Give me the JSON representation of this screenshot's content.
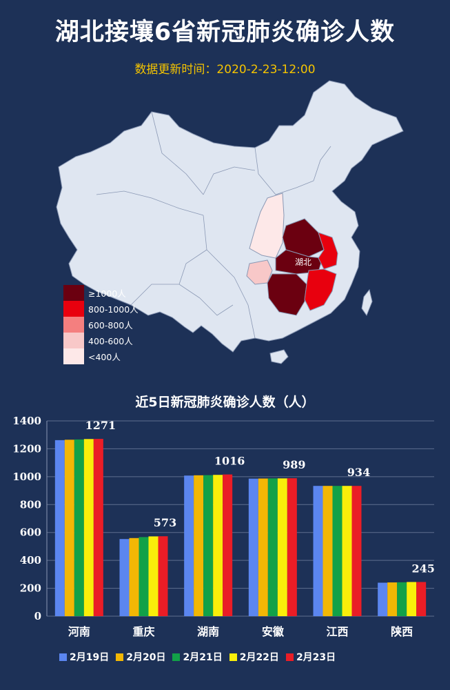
{
  "header": {
    "title": "湖北接壤6省新冠肺炎确诊人数",
    "update_time": "数据更新时间：2020-2-23-12:00"
  },
  "map": {
    "hubei_label": "湖北",
    "legend": [
      {
        "label": "≥1000人",
        "color": "#6b0010"
      },
      {
        "label": "800-1000人",
        "color": "#e8000e"
      },
      {
        "label": "600-800人",
        "color": "#f47f7f"
      },
      {
        "label": "400-600人",
        "color": "#f8c8c8"
      },
      {
        "label": "<400人",
        "color": "#fde8e8"
      }
    ]
  },
  "colors": {
    "background": "#1d3157",
    "map_land": "#dfe6f1",
    "title": "#ffffff",
    "subtitle": "#f5c400",
    "axis_text": "#ffffff"
  },
  "chart_title": "近5日新冠肺炎确诊人数（人）",
  "chart_data": {
    "type": "bar",
    "categories": [
      "河南",
      "重庆",
      "湖南",
      "安徽",
      "江西",
      "陕西"
    ],
    "series": [
      {
        "name": "2月19日",
        "color": "#5b86f0",
        "values": [
          1262,
          553,
          1008,
          986,
          934,
          240
        ]
      },
      {
        "name": "2月20日",
        "color": "#f2b705",
        "values": [
          1265,
          560,
          1010,
          987,
          934,
          242
        ]
      },
      {
        "name": "2月21日",
        "color": "#12a148",
        "values": [
          1267,
          567,
          1011,
          988,
          934,
          243
        ]
      },
      {
        "name": "2月22日",
        "color": "#f9ee0a",
        "values": [
          1270,
          572,
          1013,
          988,
          934,
          245
        ]
      },
      {
        "name": "2月23日",
        "color": "#ea1d26",
        "values": [
          1271,
          573,
          1016,
          989,
          934,
          245
        ]
      }
    ],
    "data_labels": [
      "1271",
      "573",
      "1016",
      "989",
      "934",
      "245"
    ],
    "y_ticks": [
      0,
      200,
      400,
      600,
      800,
      1000,
      1200,
      1400
    ],
    "ylim": [
      0,
      1400
    ],
    "grid": true
  }
}
